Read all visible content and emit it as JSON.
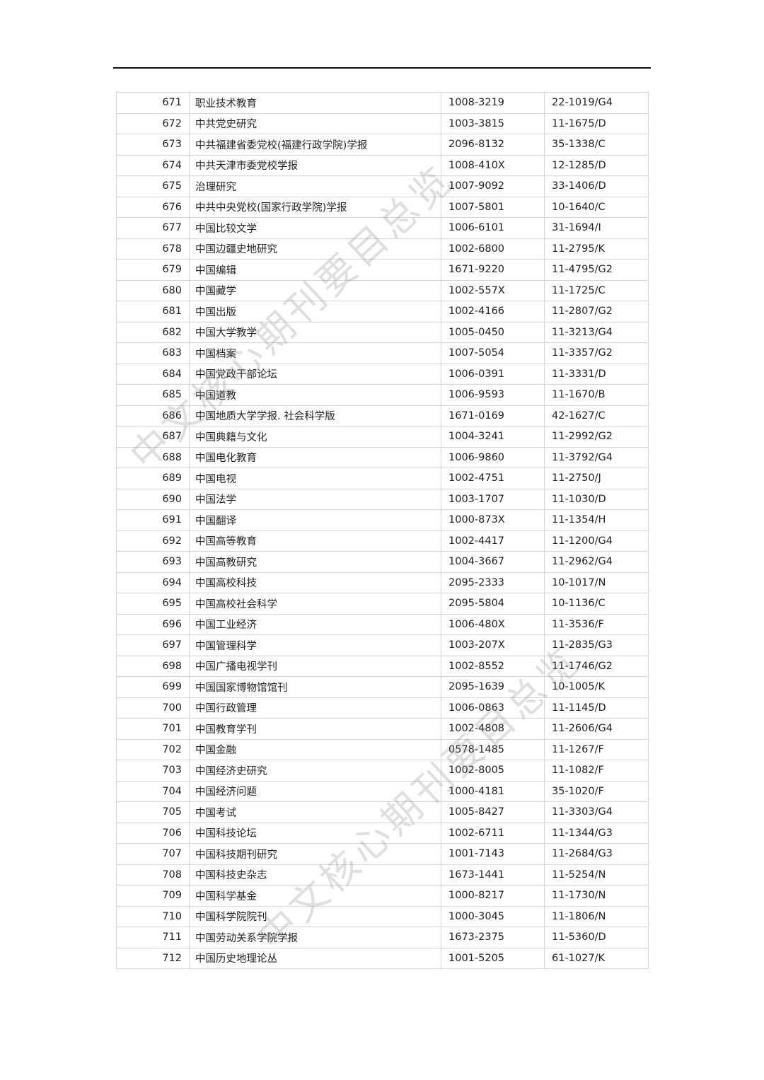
{
  "watermark": "中文核心期刊要目总览",
  "rows": [
    [
      "671",
      "职业技术教育",
      "1008-3219",
      "22-1019/G4"
    ],
    [
      "672",
      "中共党史研究",
      "1003-3815",
      "11-1675/D"
    ],
    [
      "673",
      "中共福建省委党校(福建行政学院)学报",
      "2096-8132",
      "35-1338/C"
    ],
    [
      "674",
      "中共天津市委党校学报",
      "1008-410X",
      "12-1285/D"
    ],
    [
      "675",
      "治理研究",
      "1007-9092",
      "33-1406/D"
    ],
    [
      "676",
      "中共中央党校(国家行政学院)学报",
      "1007-5801",
      "10-1640/C"
    ],
    [
      "677",
      "中国比较文学",
      "1006-6101",
      "31-1694/I"
    ],
    [
      "678",
      "中国边疆史地研究",
      "1002-6800",
      "11-2795/K"
    ],
    [
      "679",
      "中国编辑",
      "1671-9220",
      "11-4795/G2"
    ],
    [
      "680",
      "中国藏学",
      "1002-557X",
      "11-1725/C"
    ],
    [
      "681",
      "中国出版",
      "1002-4166",
      "11-2807/G2"
    ],
    [
      "682",
      "中国大学教学",
      "1005-0450",
      "11-3213/G4"
    ],
    [
      "683",
      "中国档案",
      "1007-5054",
      "11-3357/G2"
    ],
    [
      "684",
      "中国党政干部论坛",
      "1006-0391",
      "11-3331/D"
    ],
    [
      "685",
      "中国道教",
      "1006-9593",
      "11-1670/B"
    ],
    [
      "686",
      "中国地质大学学报. 社会科学版",
      "1671-0169",
      "42-1627/C"
    ],
    [
      "687",
      "中国典籍与文化",
      "1004-3241",
      "11-2992/G2"
    ],
    [
      "688",
      "中国电化教育",
      "1006-9860",
      "11-3792/G4"
    ],
    [
      "689",
      "中国电视",
      "1002-4751",
      "11-2750/J"
    ],
    [
      "690",
      "中国法学",
      "1003-1707",
      "11-1030/D"
    ],
    [
      "691",
      "中国翻译",
      "1000-873X",
      "11-1354/H"
    ],
    [
      "692",
      "中国高等教育",
      "1002-4417",
      "11-1200/G4"
    ],
    [
      "693",
      "中国高教研究",
      "1004-3667",
      "11-2962/G4"
    ],
    [
      "694",
      "中国高校科技",
      "2095-2333",
      "10-1017/N"
    ],
    [
      "695",
      "中国高校社会科学",
      "2095-5804",
      "10-1136/C"
    ],
    [
      "696",
      "中国工业经济",
      "1006-480X",
      "11-3536/F"
    ],
    [
      "697",
      "中国管理科学",
      "1003-207X",
      "11-2835/G3"
    ],
    [
      "698",
      "中国广播电视学刊",
      "1002-8552",
      "11-1746/G2"
    ],
    [
      "699",
      "中国国家博物馆馆刊",
      "2095-1639",
      "10-1005/K"
    ],
    [
      "700",
      "中国行政管理",
      "1006-0863",
      "11-1145/D"
    ],
    [
      "701",
      "中国教育学刊",
      "1002-4808",
      "11-2606/G4"
    ],
    [
      "702",
      "中国金融",
      "0578-1485",
      "11-1267/F"
    ],
    [
      "703",
      "中国经济史研究",
      "1002-8005",
      "11-1082/F"
    ],
    [
      "704",
      "中国经济问题",
      "1000-4181",
      "35-1020/F"
    ],
    [
      "705",
      "中国考试",
      "1005-8427",
      "11-3303/G4"
    ],
    [
      "706",
      "中国科技论坛",
      "1002-6711",
      "11-1344/G3"
    ],
    [
      "707",
      "中国科技期刊研究",
      "1001-7143",
      "11-2684/G3"
    ],
    [
      "708",
      "中国科技史杂志",
      "1673-1441",
      "11-5254/N"
    ],
    [
      "709",
      "中国科学基金",
      "1000-8217",
      "11-1730/N"
    ],
    [
      "710",
      "中国科学院院刊",
      "1000-3045",
      "11-1806/N"
    ],
    [
      "711",
      "中国劳动关系学院学报",
      "1673-2375",
      "11-5360/D"
    ],
    [
      "712",
      "中国历史地理论丛",
      "1001-5205",
      "61-1027/K"
    ]
  ]
}
